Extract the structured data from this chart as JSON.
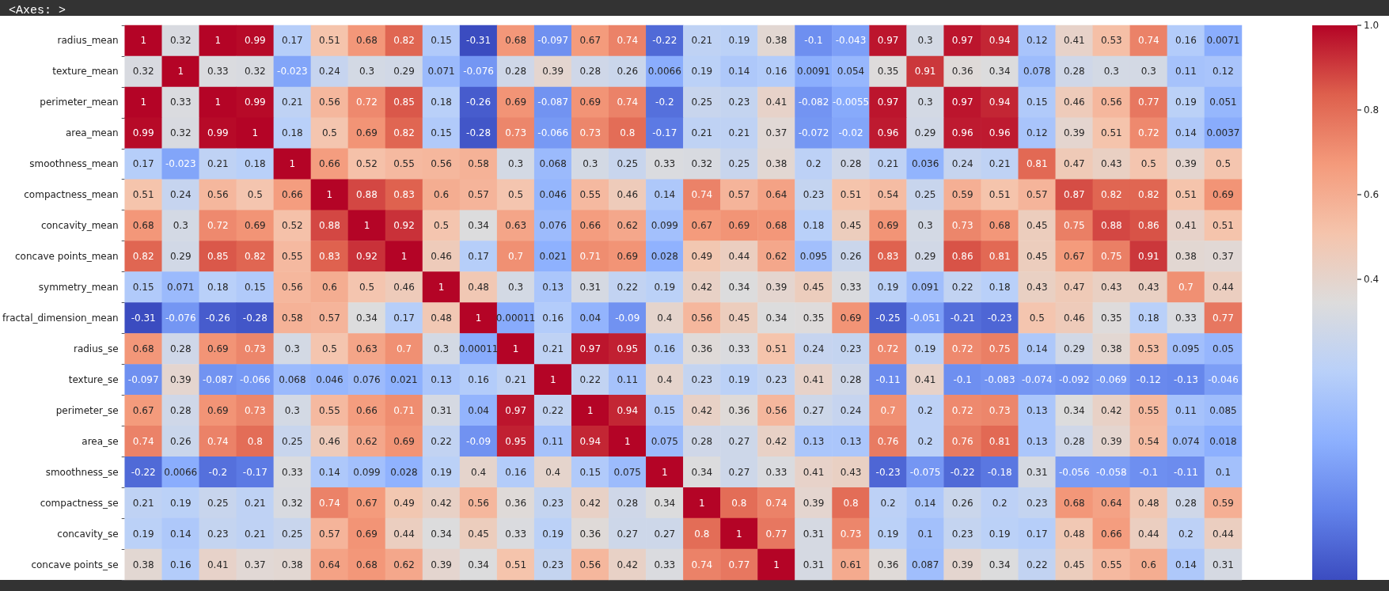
{
  "chart_data": {
    "type": "heatmap",
    "title": "<Axes: >",
    "categories": [
      null,
      null,
      null,
      null,
      null,
      null,
      null,
      null,
      null,
      null,
      null,
      null,
      null,
      null,
      null,
      null,
      null,
      null,
      null,
      null,
      null,
      null,
      null,
      null,
      null,
      null,
      null,
      null,
      null,
      null
    ],
    "y_categories": [
      "radius_mean",
      "texture_mean",
      "perimeter_mean",
      "area_mean",
      "smoothness_mean",
      "compactness_mean",
      "concavity_mean",
      "concave points_mean",
      "symmetry_mean",
      "fractal_dimension_mean",
      "radius_se",
      "texture_se",
      "perimeter_se",
      "area_se",
      "smoothness_se",
      "compactness_se",
      "concavity_se",
      "concave points_se"
    ],
    "cells": [
      [
        1,
        0.32,
        1,
        0.99,
        0.17,
        0.51,
        0.68,
        0.82,
        0.15,
        -0.31,
        0.68,
        -0.097,
        0.67,
        0.74,
        -0.22,
        0.21,
        0.19,
        0.38,
        -0.1,
        -0.043,
        0.97,
        0.3,
        0.97,
        0.94,
        0.12,
        0.41,
        0.53,
        0.74,
        0.16,
        0.0071
      ],
      [
        0.32,
        1,
        0.33,
        0.32,
        -0.023,
        0.24,
        0.3,
        0.29,
        0.071,
        -0.076,
        0.28,
        0.39,
        0.28,
        0.26,
        0.0066,
        0.19,
        0.14,
        0.16,
        0.0091,
        0.054,
        0.35,
        0.91,
        0.36,
        0.34,
        0.078,
        0.28,
        0.3,
        0.3,
        0.11,
        0.12
      ],
      [
        1,
        0.33,
        1,
        0.99,
        0.21,
        0.56,
        0.72,
        0.85,
        0.18,
        -0.26,
        0.69,
        -0.087,
        0.69,
        0.74,
        -0.2,
        0.25,
        0.23,
        0.41,
        -0.082,
        -0.0055,
        0.97,
        0.3,
        0.97,
        0.94,
        0.15,
        0.46,
        0.56,
        0.77,
        0.19,
        0.051
      ],
      [
        0.99,
        0.32,
        0.99,
        1,
        0.18,
        0.5,
        0.69,
        0.82,
        0.15,
        -0.28,
        0.73,
        -0.066,
        0.73,
        0.8,
        -0.17,
        0.21,
        0.21,
        0.37,
        -0.072,
        -0.02,
        0.96,
        0.29,
        0.96,
        0.96,
        0.12,
        0.39,
        0.51,
        0.72,
        0.14,
        0.0037
      ],
      [
        0.17,
        -0.023,
        0.21,
        0.18,
        1,
        0.66,
        0.52,
        0.55,
        0.56,
        0.58,
        0.3,
        0.068,
        0.3,
        0.25,
        0.33,
        0.32,
        0.25,
        0.38,
        0.2,
        0.28,
        0.21,
        0.036,
        0.24,
        0.21,
        0.81,
        0.47,
        0.43,
        0.5,
        0.39,
        0.5
      ],
      [
        0.51,
        0.24,
        0.56,
        0.5,
        0.66,
        1,
        0.88,
        0.83,
        0.6,
        0.57,
        0.5,
        0.046,
        0.55,
        0.46,
        0.14,
        0.74,
        0.57,
        0.64,
        0.23,
        0.51,
        0.54,
        0.25,
        0.59,
        0.51,
        0.57,
        0.87,
        0.82,
        0.82,
        0.51,
        0.69
      ],
      [
        0.68,
        0.3,
        0.72,
        0.69,
        0.52,
        0.88,
        1,
        0.92,
        0.5,
        0.34,
        0.63,
        0.076,
        0.66,
        0.62,
        0.099,
        0.67,
        0.69,
        0.68,
        0.18,
        0.45,
        0.69,
        0.3,
        0.73,
        0.68,
        0.45,
        0.75,
        0.88,
        0.86,
        0.41,
        0.51
      ],
      [
        0.82,
        0.29,
        0.85,
        0.82,
        0.55,
        0.83,
        0.92,
        1,
        0.46,
        0.17,
        0.7,
        0.021,
        0.71,
        0.69,
        0.028,
        0.49,
        0.44,
        0.62,
        0.095,
        0.26,
        0.83,
        0.29,
        0.86,
        0.81,
        0.45,
        0.67,
        0.75,
        0.91,
        0.38,
        0.37
      ],
      [
        0.15,
        0.071,
        0.18,
        0.15,
        0.56,
        0.6,
        0.5,
        0.46,
        1,
        0.48,
        0.3,
        0.13,
        0.31,
        0.22,
        0.19,
        0.42,
        0.34,
        0.39,
        0.45,
        0.33,
        0.19,
        0.091,
        0.22,
        0.18,
        0.43,
        0.47,
        0.43,
        0.43,
        0.7,
        0.44
      ],
      [
        -0.31,
        -0.076,
        -0.26,
        -0.28,
        0.58,
        0.57,
        0.34,
        0.17,
        0.48,
        1,
        0.00011,
        0.16,
        0.04,
        -0.09,
        0.4,
        0.56,
        0.45,
        0.34,
        0.35,
        0.69,
        -0.25,
        -0.051,
        -0.21,
        -0.23,
        0.5,
        0.46,
        0.35,
        0.18,
        0.33,
        0.77
      ],
      [
        0.68,
        0.28,
        0.69,
        0.73,
        0.3,
        0.5,
        0.63,
        0.7,
        0.3,
        0.00011,
        1,
        0.21,
        0.97,
        0.95,
        0.16,
        0.36,
        0.33,
        0.51,
        0.24,
        0.23,
        0.72,
        0.19,
        0.72,
        0.75,
        0.14,
        0.29,
        0.38,
        0.53,
        0.095,
        0.05
      ],
      [
        -0.097,
        0.39,
        -0.087,
        -0.066,
        0.068,
        0.046,
        0.076,
        0.021,
        0.13,
        0.16,
        0.21,
        1,
        0.22,
        0.11,
        0.4,
        0.23,
        0.19,
        0.23,
        0.41,
        0.28,
        -0.11,
        0.41,
        -0.1,
        -0.083,
        -0.074,
        -0.092,
        -0.069,
        -0.12,
        -0.13,
        -0.046
      ],
      [
        0.67,
        0.28,
        0.69,
        0.73,
        0.3,
        0.55,
        0.66,
        0.71,
        0.31,
        0.04,
        0.97,
        0.22,
        1,
        0.94,
        0.15,
        0.42,
        0.36,
        0.56,
        0.27,
        0.24,
        0.7,
        0.2,
        0.72,
        0.73,
        0.13,
        0.34,
        0.42,
        0.55,
        0.11,
        0.085
      ],
      [
        0.74,
        0.26,
        0.74,
        0.8,
        0.25,
        0.46,
        0.62,
        0.69,
        0.22,
        -0.09,
        0.95,
        0.11,
        0.94,
        1,
        0.075,
        0.28,
        0.27,
        0.42,
        0.13,
        0.13,
        0.76,
        0.2,
        0.76,
        0.81,
        0.13,
        0.28,
        0.39,
        0.54,
        0.074,
        0.018
      ],
      [
        -0.22,
        0.0066,
        -0.2,
        -0.17,
        0.33,
        0.14,
        0.099,
        0.028,
        0.19,
        0.4,
        0.16,
        0.4,
        0.15,
        0.075,
        1,
        0.34,
        0.27,
        0.33,
        0.41,
        0.43,
        -0.23,
        -0.075,
        -0.22,
        -0.18,
        0.31,
        -0.056,
        -0.058,
        -0.1,
        -0.11,
        0.1
      ],
      [
        0.21,
        0.19,
        0.25,
        0.21,
        0.32,
        0.74,
        0.67,
        0.49,
        0.42,
        0.56,
        0.36,
        0.23,
        0.42,
        0.28,
        0.34,
        1,
        0.8,
        0.74,
        0.39,
        0.8,
        0.2,
        0.14,
        0.26,
        0.2,
        0.23,
        0.68,
        0.64,
        0.48,
        0.28,
        0.59
      ],
      [
        0.19,
        0.14,
        0.23,
        0.21,
        0.25,
        0.57,
        0.69,
        0.44,
        0.34,
        0.45,
        0.33,
        0.19,
        0.36,
        0.27,
        0.27,
        0.8,
        1,
        0.77,
        0.31,
        0.73,
        0.19,
        0.1,
        0.23,
        0.19,
        0.17,
        0.48,
        0.66,
        0.44,
        0.2,
        0.44
      ],
      [
        0.38,
        0.16,
        0.41,
        0.37,
        0.38,
        0.64,
        0.68,
        0.62,
        0.39,
        0.34,
        0.51,
        0.23,
        0.56,
        0.42,
        0.33,
        0.74,
        0.77,
        1,
        0.31,
        0.61,
        0.36,
        0.087,
        0.39,
        0.34,
        0.22,
        0.45,
        0.55,
        0.6,
        0.14,
        0.31
      ]
    ],
    "clim": [
      -0.31,
      1
    ],
    "cticks": [
      0.4,
      0.6,
      0.8,
      {
        "value": 1,
        "label": "1.0"
      }
    ],
    "data_labels": true,
    "tick_labels": "y"
  }
}
